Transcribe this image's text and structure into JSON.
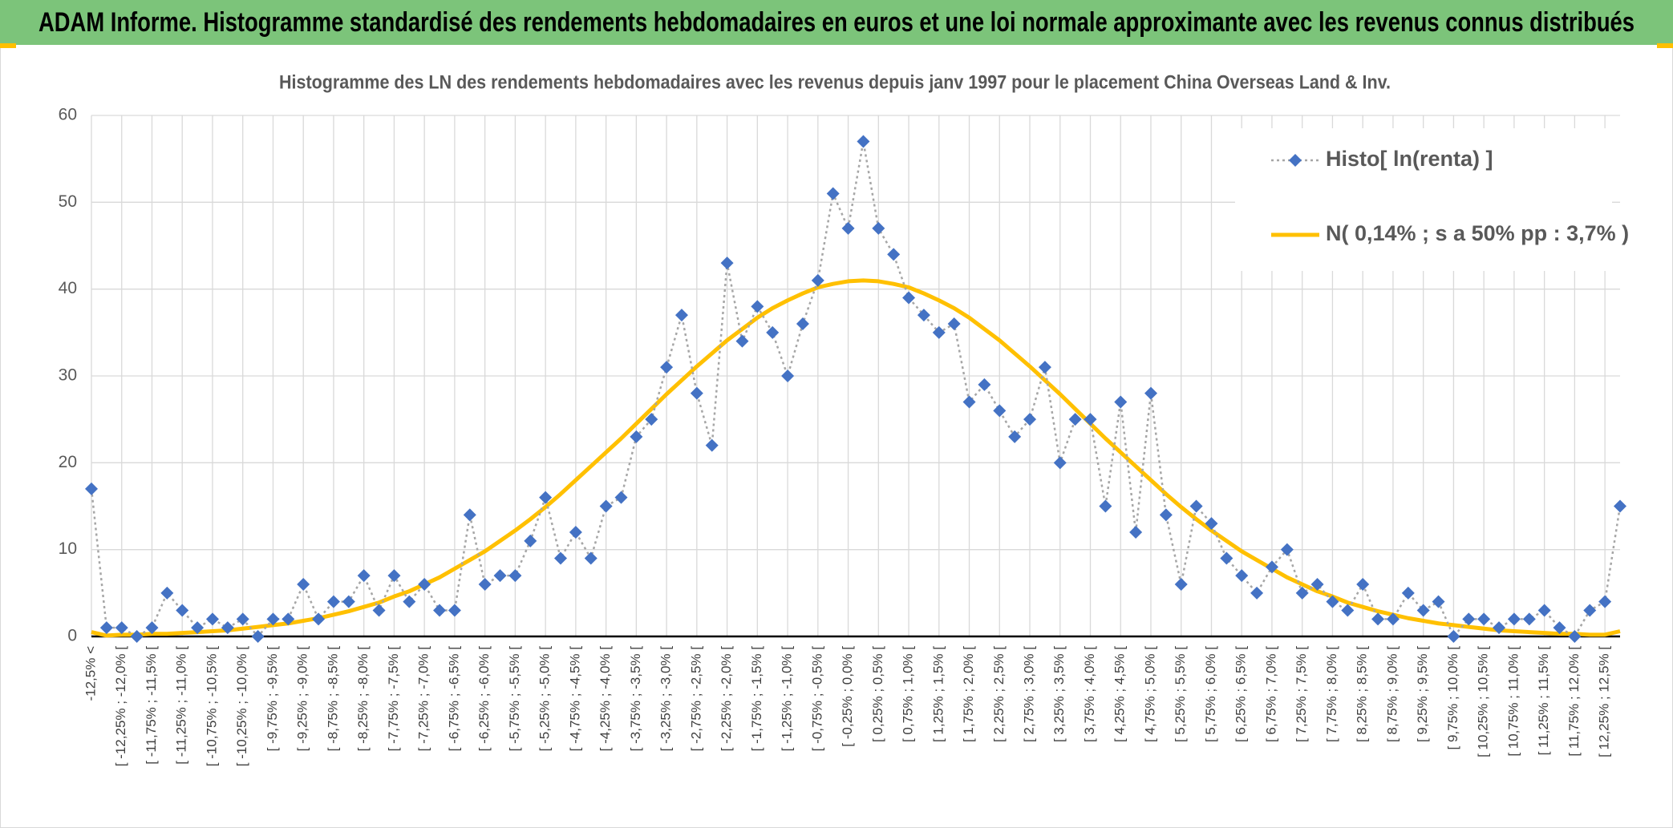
{
  "header": {
    "title": "ADAM Informe. Histogramme standardisé des rendements hebdomadaires en euros et une loi normale approximante avec les revenus connus distribués"
  },
  "chart_data": {
    "type": "line",
    "title": "Histogramme des LN des rendements hebdomadaires avec les revenus depuis janv 1997 pour le placement China Overseas Land & Inv.",
    "categories": [
      "-12,5% <",
      null,
      "[ -12,25% ; -12,0% [",
      null,
      "[ -11,75% ; -11,5% [",
      null,
      "[ -11,25% ; -11,0% [",
      null,
      "[ -10,75% ; -10,5% [",
      null,
      "[ -10,25% ; -10,0% [",
      null,
      "[ -9,75% ; -9,5% [",
      null,
      "[ -9,25% ; -9,0% [",
      null,
      "[ -8,75% ; -8,5% [",
      null,
      "[ -8,25% ; -8,0% [",
      null,
      "[ -7,75% ; -7,5% [",
      null,
      "[ -7,25% ; -7,0% [",
      null,
      "[ -6,75% ; -6,5% [",
      null,
      "[ -6,25% ; -6,0% [",
      null,
      "[ -5,75% ; -5,5% [",
      null,
      "[ -5,25% ; -5,0% [",
      null,
      "[ -4,75% ; -4,5% [",
      null,
      "[ -4,25% ; -4,0% [",
      null,
      "[ -3,75% ; -3,5% [",
      null,
      "[ -3,25% ; -3,0% [",
      null,
      "[ -2,75% ; -2,5% [",
      null,
      "[ -2,25% ; -2,0% [",
      null,
      "[ -1,75% ; -1,5% [",
      null,
      "[ -1,25% ; -1,0% [",
      null,
      "[ -0,75% ; -0,5% [",
      null,
      "[ -0,25% ; 0,0% [",
      null,
      "[ 0,25% ; 0,5% [",
      null,
      "[ 0,75% ; 1,0% [",
      null,
      "[ 1,25% ; 1,5% [",
      null,
      "[ 1,75% ; 2,0% [",
      null,
      "[ 2,25% ; 2,5% [",
      null,
      "[ 2,75% ; 3,0% [",
      null,
      "[ 3,25% ; 3,5% [",
      null,
      "[ 3,75% ; 4,0% [",
      null,
      "[ 4,25% ; 4,5% [",
      null,
      "[ 4,75% ; 5,0% [",
      null,
      "[ 5,25% ; 5,5% [",
      null,
      "[ 5,75% ; 6,0% [",
      null,
      "[ 6,25% ; 6,5% [",
      null,
      "[ 6,75% ; 7,0% [",
      null,
      "[ 7,25% ; 7,5% [",
      null,
      "[ 7,75% ; 8,0% [",
      null,
      "[ 8,25% ; 8,5% [",
      null,
      "[ 8,75% ; 9,0% [",
      null,
      "[ 9,25% ; 9,5% [",
      null,
      "[ 9,75% ; 10,0% [",
      null,
      "[ 10,25% ; 10,5% [",
      null,
      "[ 10,75% ; 11,0% [",
      null,
      "[ 11,25% ; 11,5% [",
      null,
      "[ 11,75% ; 12,0% [",
      null,
      "[ 12,25% ; 12,5% [",
      null
    ],
    "series": [
      {
        "name": "Histo[ ln(renta) ]",
        "color": "#4472c4",
        "line_color": "#a6a6a6",
        "marker": "diamond",
        "line_style": "dotted",
        "values": [
          17,
          1,
          1,
          0,
          1,
          5,
          3,
          1,
          2,
          1,
          2,
          0,
          2,
          2,
          6,
          2,
          4,
          4,
          7,
          3,
          7,
          4,
          6,
          3,
          3,
          14,
          6,
          7,
          7,
          11,
          16,
          9,
          12,
          9,
          15,
          16,
          23,
          25,
          31,
          37,
          28,
          22,
          43,
          34,
          38,
          35,
          30,
          36,
          41,
          51,
          47,
          57,
          47,
          44,
          39,
          37,
          35,
          36,
          27,
          29,
          26,
          23,
          25,
          31,
          20,
          25,
          25,
          15,
          27,
          12,
          28,
          14,
          6,
          15,
          13,
          9,
          7,
          5,
          8,
          10,
          5,
          6,
          4,
          3,
          6,
          2,
          2,
          5,
          3,
          4,
          0,
          2,
          2,
          1,
          2,
          2,
          3,
          1,
          0,
          3,
          4,
          15
        ]
      },
      {
        "name": "N( 0,14% ; s a 50% pp : 3,7% )",
        "color": "#ffc000",
        "line_style": "solid",
        "values": [
          0.5,
          0.1,
          0.2,
          0.2,
          0.3,
          0.3,
          0.4,
          0.5,
          0.6,
          0.7,
          0.9,
          1.1,
          1.3,
          1.5,
          1.8,
          2.1,
          2.5,
          2.9,
          3.4,
          3.9,
          4.6,
          5.2,
          6.0,
          6.8,
          7.8,
          8.8,
          9.8,
          11.0,
          12.2,
          13.5,
          14.9,
          16.4,
          18.0,
          19.6,
          21.2,
          22.8,
          24.5,
          26.2,
          27.9,
          29.5,
          31.1,
          32.6,
          34.1,
          35.4,
          36.7,
          37.8,
          38.7,
          39.5,
          40.2,
          40.6,
          40.9,
          41.0,
          40.9,
          40.6,
          40.2,
          39.5,
          38.7,
          37.8,
          36.7,
          35.4,
          34.1,
          32.6,
          31.1,
          29.5,
          27.9,
          26.2,
          24.5,
          22.8,
          21.2,
          19.6,
          18.0,
          16.4,
          14.9,
          13.5,
          12.2,
          11.0,
          9.8,
          8.8,
          7.8,
          6.8,
          6.0,
          5.2,
          4.6,
          3.9,
          3.4,
          2.9,
          2.5,
          2.1,
          1.8,
          1.5,
          1.3,
          1.1,
          0.9,
          0.7,
          0.6,
          0.5,
          0.4,
          0.3,
          0.3,
          0.2,
          0.2,
          0.6
        ]
      }
    ],
    "ylim": [
      0,
      60
    ],
    "yticks": [
      0,
      10,
      20,
      30,
      40,
      50,
      60
    ],
    "grid": true,
    "legend": "top-right"
  }
}
